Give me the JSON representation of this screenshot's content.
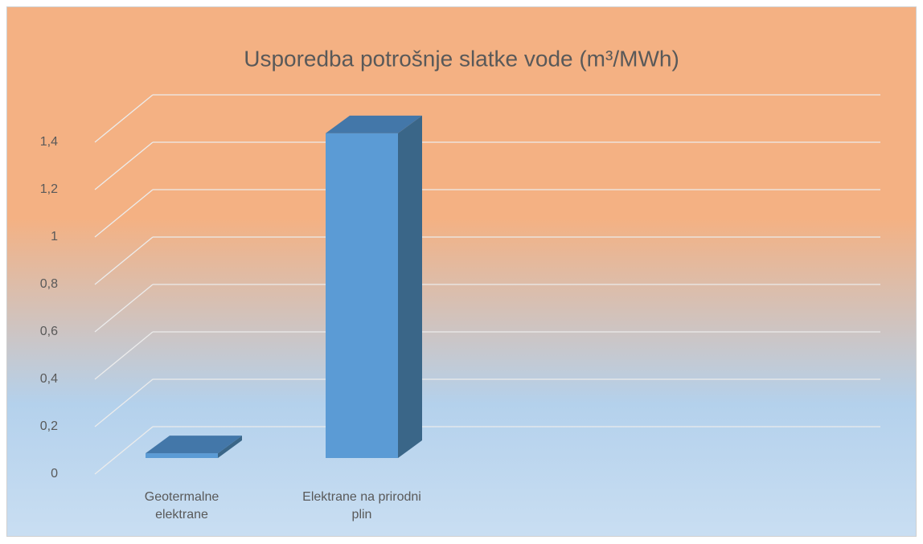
{
  "chart_data": {
    "type": "bar3d",
    "title": "Usporedba potrošnje slatke vode (m³/MWh)",
    "categories": [
      "Geotermalne elektrane",
      "Elektrane na prirodni plin"
    ],
    "values": [
      0.02,
      1.37
    ],
    "color": "#5b9bd5",
    "ylim": [
      0,
      1.4
    ],
    "yticks": [
      0,
      {
        "value": 0.2,
        "label": "0,2"
      },
      {
        "value": 0.4,
        "label": "0,4"
      },
      {
        "value": 0.6,
        "label": "0,6"
      },
      {
        "value": 0.8,
        "label": "0,8"
      },
      1,
      {
        "value": 1.2,
        "label": "1,2"
      },
      {
        "value": 1.4,
        "label": "1,4"
      }
    ],
    "grid": true
  }
}
